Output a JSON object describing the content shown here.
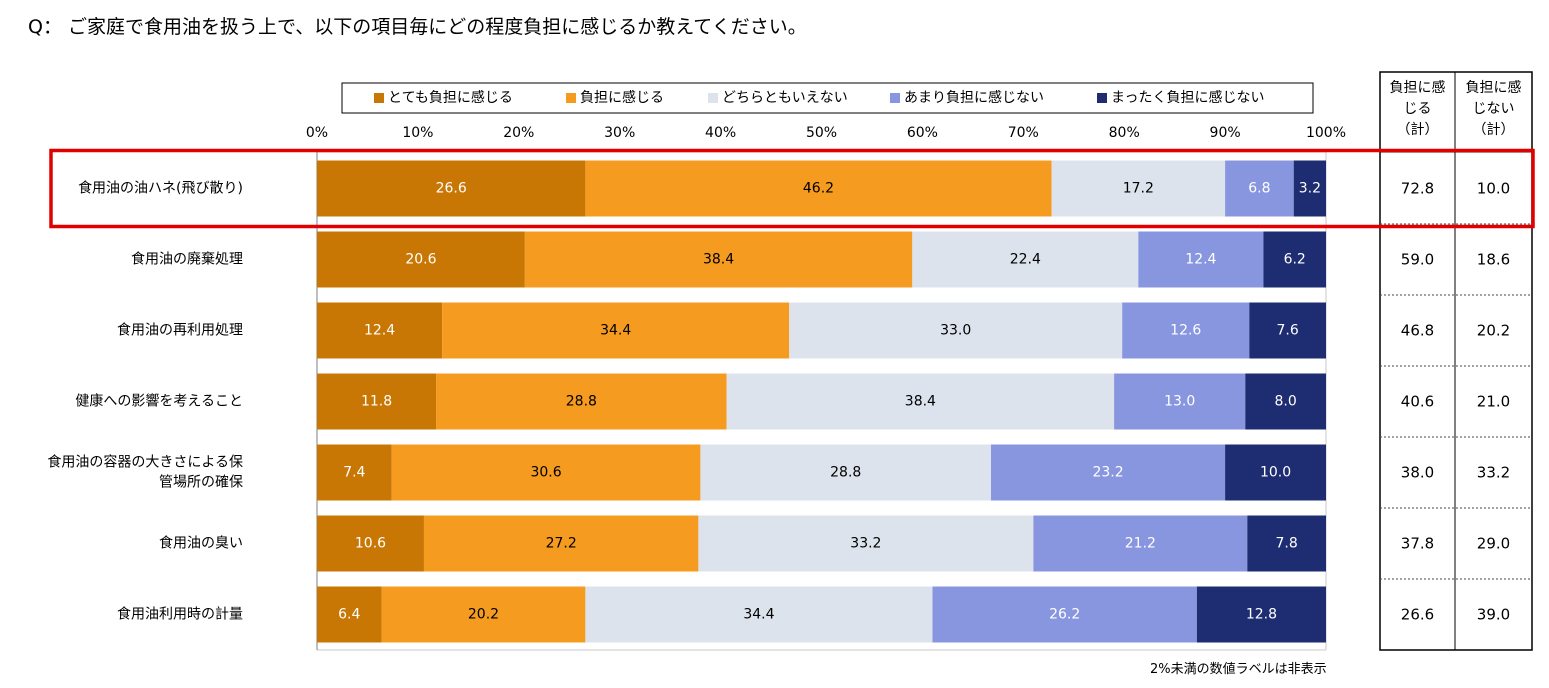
{
  "title": "Q： ご家庭で食用油を扱う上で、以下の項目毎にどの程度負担に感じるか教えてください。",
  "footnote": "2%未満の数値ラベルは非表示",
  "colors": {
    "very_burden": "#C87705",
    "burden": "#F59B20",
    "neutral": "#DDE3ED",
    "not_much": "#8896E0",
    "not_at_all": "#1E2C72",
    "highlight": "#E00000"
  },
  "chart_data": {
    "type": "bar",
    "orientation": "horizontal",
    "stacked": true,
    "xlim": [
      0,
      100
    ],
    "xticks": [
      "0%",
      "10%",
      "20%",
      "30%",
      "40%",
      "50%",
      "60%",
      "70%",
      "80%",
      "90%",
      "100%"
    ],
    "categories": [
      "食用油の油ハネ(飛び散り)",
      "食用油の廃棄処理",
      "食用油の再利用処理",
      "健康への影響を考えること",
      "食用油の容器の大きさによる保管場所の確保",
      "食用油の臭い",
      "食用油利用時の計量"
    ],
    "category_lines": [
      [
        "食用油の油ハネ(飛び散り)"
      ],
      [
        "食用油の廃棄処理"
      ],
      [
        "食用油の再利用処理"
      ],
      [
        "健康への影響を考えること"
      ],
      [
        "食用油の容器の大きさによる保",
        "管場所の確保"
      ],
      [
        "食用油の臭い"
      ],
      [
        "食用油利用時の計量"
      ]
    ],
    "series": [
      {
        "name": "とても負担に感じる",
        "color_key": "very_burden",
        "label_color": "#ffffff",
        "values": [
          26.6,
          20.6,
          12.4,
          11.8,
          7.4,
          10.6,
          6.4
        ],
        "labels": [
          "26.6",
          "20.6",
          "12.4",
          "11.8",
          "7.4",
          "10.6",
          "6.4"
        ]
      },
      {
        "name": "負担に感じる",
        "color_key": "burden",
        "label_color": "#000000",
        "values": [
          46.2,
          38.4,
          34.4,
          28.8,
          30.6,
          27.2,
          20.2
        ],
        "labels": [
          "46.2",
          "38.4",
          "34.4",
          "28.8",
          "30.6",
          "27.2",
          "20.2"
        ]
      },
      {
        "name": "どちらともいえない",
        "color_key": "neutral",
        "label_color": "#000000",
        "values": [
          17.2,
          22.4,
          33.0,
          38.4,
          28.8,
          33.2,
          34.4
        ],
        "labels": [
          "17.2",
          "22.4",
          "33.0",
          "38.4",
          "28.8",
          "33.2",
          "34.4"
        ]
      },
      {
        "name": "あまり負担に感じない",
        "color_key": "not_much",
        "label_color": "#ffffff",
        "values": [
          6.8,
          12.4,
          12.6,
          13.0,
          23.2,
          21.2,
          26.2
        ],
        "labels": [
          "6.8",
          "12.4",
          "12.6",
          "13.0",
          "23.2",
          "21.2",
          "26.2"
        ]
      },
      {
        "name": "まったく負担に感じない",
        "color_key": "not_at_all",
        "label_color": "#ffffff",
        "values": [
          3.2,
          6.2,
          7.6,
          8.0,
          10.0,
          7.8,
          12.8
        ],
        "labels": [
          "3.2",
          "6.2",
          "7.6",
          "8.0",
          "10.0",
          "7.8",
          "12.8"
        ]
      }
    ],
    "legend": [
      "とても負担に感じる",
      "負担に感じる",
      "どちらともいえない",
      "あまり負担に感じない",
      "まったく負担に感じない"
    ],
    "legend_position": "top",
    "summary_headers": [
      [
        "負担に感",
        "じる",
        "（計）"
      ],
      [
        "負担に感",
        "じない",
        "（計）"
      ]
    ],
    "summary": [
      [
        "72.8",
        "10.0"
      ],
      [
        "59.0",
        "18.6"
      ],
      [
        "46.8",
        "20.2"
      ],
      [
        "40.6",
        "21.0"
      ],
      [
        "38.0",
        "33.2"
      ],
      [
        "37.8",
        "29.0"
      ],
      [
        "26.6",
        "39.0"
      ]
    ],
    "highlighted_row": 0
  }
}
